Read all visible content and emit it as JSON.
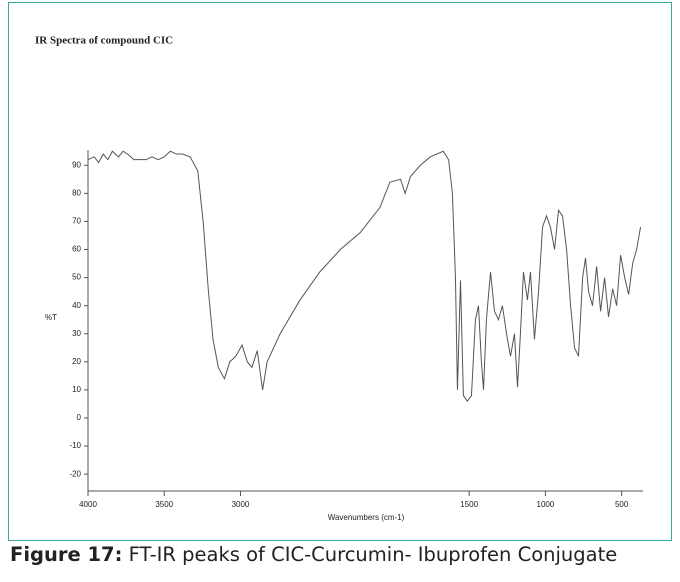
{
  "chart_data": {
    "type": "line",
    "title": "IR Spectra of compound CIC",
    "xlabel": "Wavenumbers (cm-1)",
    "ylabel": "%T",
    "xlim": [
      4000,
      360
    ],
    "xticks": [
      4000,
      3500,
      3000,
      1500,
      1000,
      500
    ],
    "ylim": [
      -26,
      99
    ],
    "yticks": [
      90,
      80,
      70,
      60,
      50,
      40,
      30,
      20,
      10,
      0,
      -10,
      -20
    ],
    "series": [
      {
        "color": "#555555",
        "x": [
          4000,
          3960,
          3930,
          3900,
          3870,
          3840,
          3800,
          3770,
          3740,
          3700,
          3660,
          3620,
          3580,
          3540,
          3500,
          3460,
          3420,
          3380,
          3330,
          3300,
          3280,
          3245,
          3210,
          3180,
          3145,
          3105,
          3070,
          3030,
          2990,
          2955,
          2925,
          2890,
          2855,
          2825,
          2740,
          2610,
          2480,
          2345,
          2215,
          2085,
          2020,
          1950,
          1920,
          1885,
          1820,
          1755,
          1670,
          1635,
          1610,
          1590,
          1577,
          1557,
          1538,
          1512,
          1485,
          1459,
          1439,
          1420,
          1406,
          1387,
          1360,
          1334,
          1308,
          1282,
          1255,
          1229,
          1203,
          1183,
          1164,
          1144,
          1118,
          1098,
          1072,
          1045,
          1019,
          993,
          967,
          940,
          914,
          888,
          861,
          835,
          809,
          783,
          756,
          737,
          717,
          691,
          664,
          638,
          612,
          586,
          559,
          533,
          507,
          480,
          454,
          428,
          402,
          376
        ],
        "values": [
          92,
          93,
          91,
          94,
          92,
          95,
          93,
          95,
          94,
          92,
          92,
          92,
          93,
          92,
          93,
          95,
          94,
          94,
          93,
          90,
          88,
          70,
          45,
          28,
          18,
          14,
          20,
          22,
          26,
          20,
          18,
          24,
          10,
          20,
          30,
          42,
          52,
          60,
          66,
          75,
          84,
          85,
          80,
          86,
          90,
          93,
          95,
          92,
          80,
          50,
          10,
          49,
          8,
          6,
          8,
          35,
          40,
          20,
          10,
          35,
          52,
          38,
          35,
          40,
          30,
          22,
          30,
          11,
          30,
          52,
          42,
          52,
          28,
          45,
          68,
          72,
          68,
          60,
          74,
          72,
          60,
          40,
          25,
          22,
          50,
          57,
          45,
          40,
          54,
          38,
          50,
          36,
          46,
          40,
          58,
          50,
          44,
          55,
          60,
          68
        ]
      }
    ]
  },
  "caption": {
    "label": "Figure 17:",
    "text": " FT-IR peaks of CIC-Curcumin- Ibuprofen Conjugate"
  }
}
